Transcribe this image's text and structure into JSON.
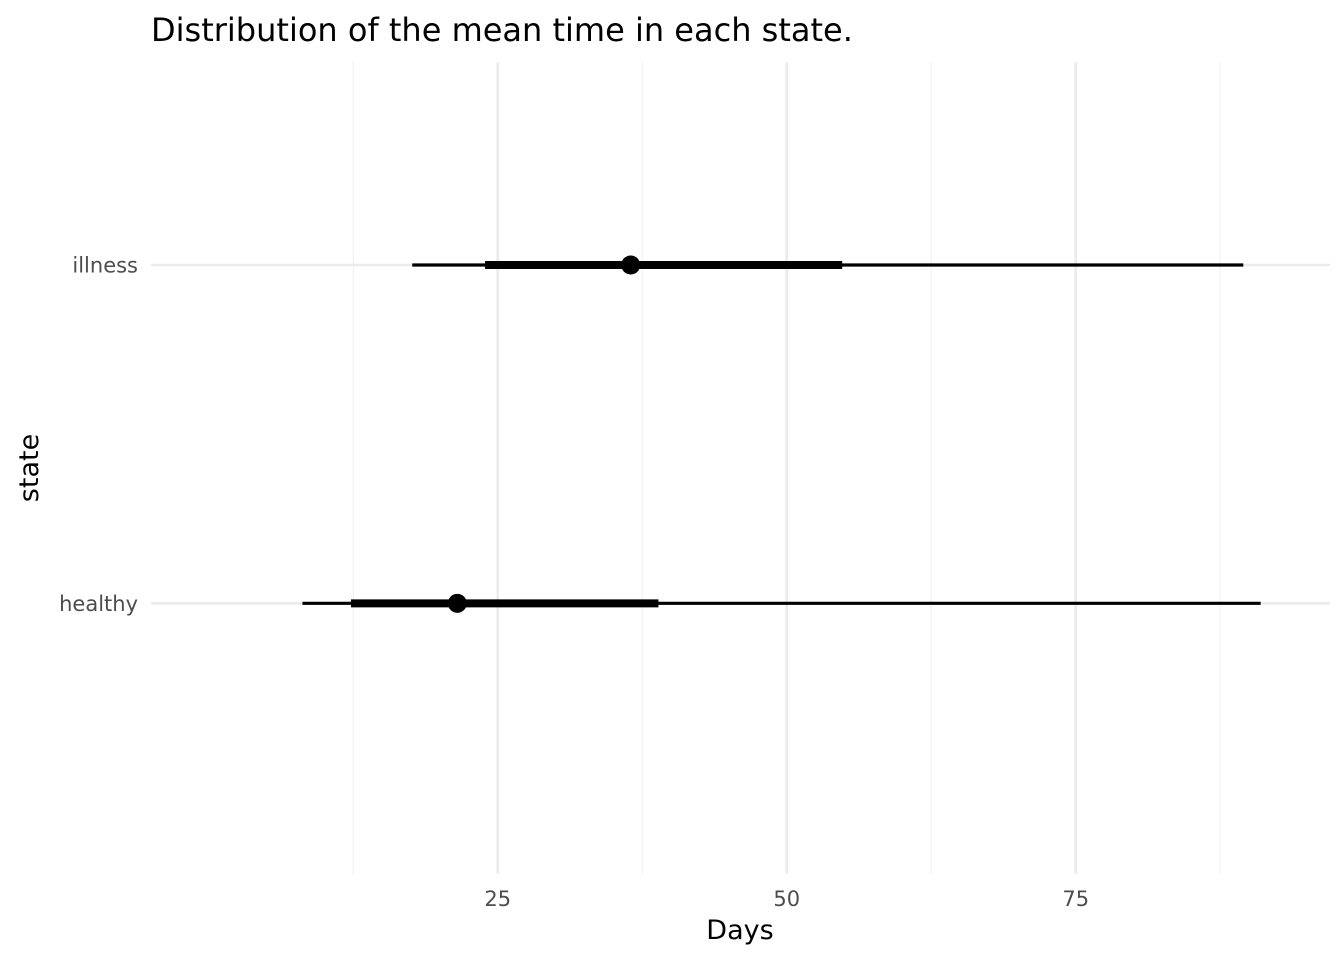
{
  "chart_data": {
    "type": "pointinterval",
    "title": "Distribution of the mean time in each state.",
    "xlabel": "Days",
    "ylabel": "state",
    "xlim": [
      -5,
      97
    ],
    "x_major_ticks": [
      25,
      50,
      75
    ],
    "x_minor_ticks": [
      12.5,
      37.5,
      62.5,
      87.5
    ],
    "grid": true,
    "legend": "none",
    "categories": [
      "illness",
      "healthy"
    ],
    "series": [
      {
        "category": "illness",
        "point": 36.5,
        "inner_interval": [
          23.9,
          54.8
        ],
        "outer_interval": [
          17.6,
          89.5
        ]
      },
      {
        "category": "healthy",
        "point": 21.5,
        "inner_interval": [
          12.3,
          38.9
        ],
        "outer_interval": [
          8.1,
          91.0
        ]
      }
    ],
    "colors": {
      "mark": "#000000",
      "grid_major": "#ebebeb",
      "grid_minor": "#f3f3f3",
      "tick_text": "#4d4d4d"
    }
  }
}
